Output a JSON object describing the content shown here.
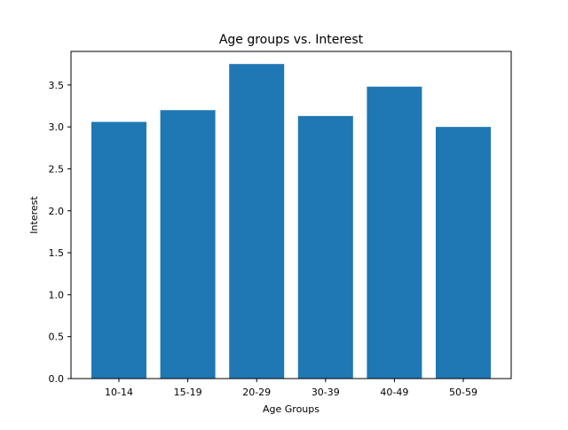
{
  "chart_data": {
    "type": "bar",
    "title": "Age groups vs. Interest",
    "xlabel": "Age Groups",
    "ylabel": "Interest",
    "categories": [
      "10-14",
      "15-19",
      "20-29",
      "30-39",
      "40-49",
      "50-59"
    ],
    "values": [
      3.06,
      3.2,
      3.75,
      3.13,
      3.48,
      3.0
    ],
    "ylim": [
      0,
      3.9
    ],
    "yticks": [
      0.0,
      0.5,
      1.0,
      1.5,
      2.0,
      2.5,
      3.0,
      3.5
    ],
    "ytick_labels": [
      "0.0",
      "0.5",
      "1.0",
      "1.5",
      "2.0",
      "2.5",
      "3.0",
      "3.5"
    ],
    "bar_color": "#1f77b4",
    "grid": false,
    "legend": false
  }
}
